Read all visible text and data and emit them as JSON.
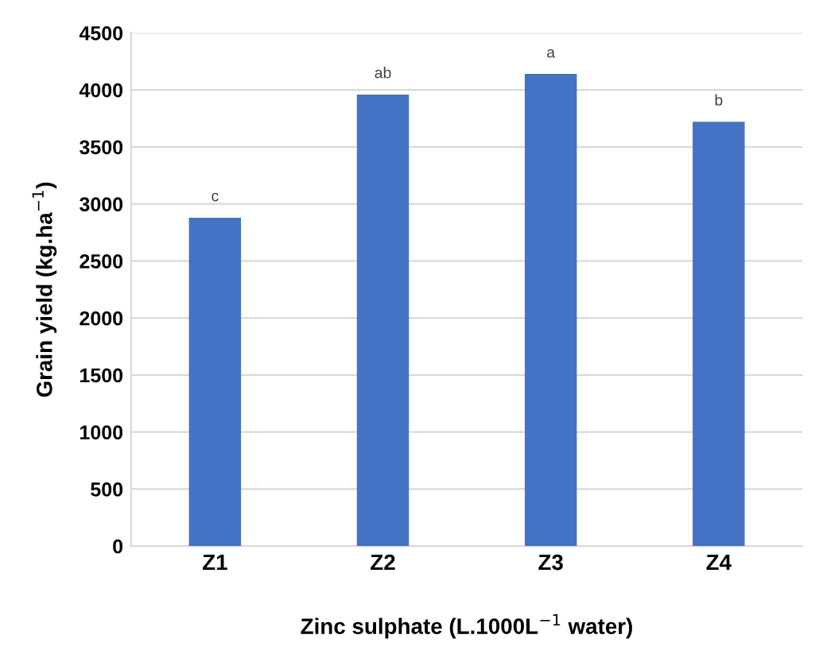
{
  "chart_data": {
    "type": "bar",
    "xlabel": "Zinc sulphate (L.1000L$^{−1}$ water)",
    "ylabel": "Grain yield (kg.ha$^{−1}$)",
    "categories": [
      "Z1",
      "Z2",
      "Z3",
      "Z4"
    ],
    "values": [
      2880,
      3960,
      4140,
      3720
    ],
    "color": "#4472c4",
    "ylim": [
      0,
      4500
    ],
    "yticks": [
      0,
      500,
      1000,
      1500,
      2000,
      2500,
      3000,
      3500,
      4000,
      4500
    ],
    "grid": "y",
    "annotations": [
      {
        "text": "c",
        "x": "Z1",
        "y": 2880
      },
      {
        "text": "ab",
        "x": "Z2",
        "y": 3960
      },
      {
        "text": "a",
        "x": "Z3",
        "y": 4140
      },
      {
        "text": "b",
        "x": "Z4",
        "y": 3720
      }
    ]
  }
}
